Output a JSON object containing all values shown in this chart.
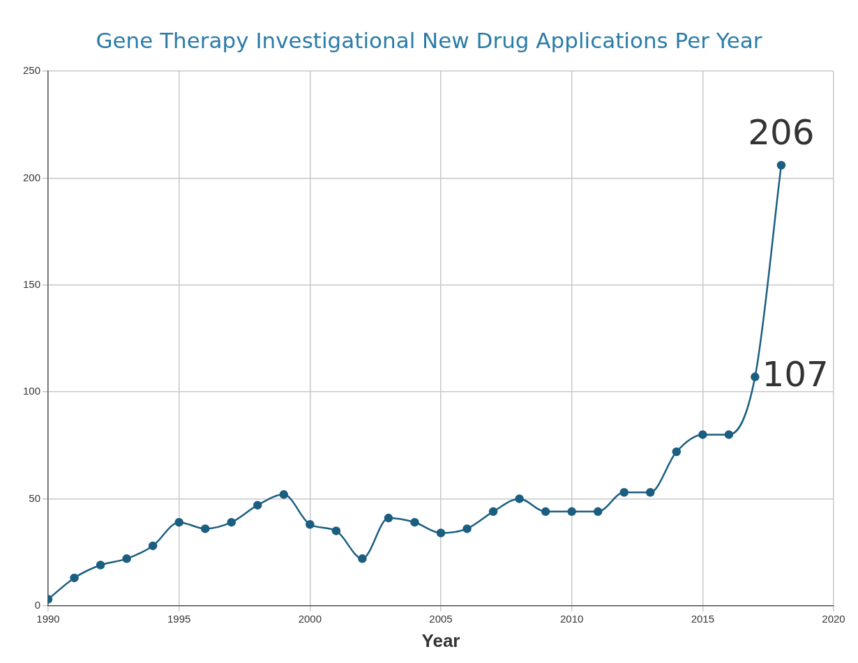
{
  "chart_data": {
    "type": "line",
    "title": "Gene Therapy Investigational New Drug Applications Per Year",
    "xlabel": "Year",
    "x": [
      1990,
      1991,
      1992,
      1993,
      1994,
      1995,
      1996,
      1997,
      1998,
      1999,
      2000,
      2001,
      2002,
      2003,
      2004,
      2005,
      2006,
      2007,
      2008,
      2009,
      2010,
      2011,
      2012,
      2013,
      2014,
      2015,
      2016,
      2017,
      2018
    ],
    "series": [
      {
        "color": "#1b5e80",
        "values": [
          3,
          13,
          19,
          22,
          28,
          39,
          36,
          39,
          47,
          52,
          38,
          35,
          22,
          41,
          39,
          34,
          36,
          44,
          50,
          44,
          44,
          44,
          53,
          53,
          72,
          80,
          80,
          107,
          206
        ],
        "value_labels": [
          null,
          null,
          null,
          null,
          null,
          null,
          null,
          null,
          null,
          null,
          null,
          null,
          null,
          null,
          null,
          null,
          null,
          null,
          null,
          null,
          null,
          null,
          null,
          null,
          null,
          null,
          null,
          "107",
          "206"
        ]
      }
    ],
    "xlim": [
      1990,
      2020
    ],
    "xticks": [
      1990,
      1995,
      2000,
      2005,
      2010,
      2015,
      2020
    ],
    "ylim": [
      0,
      250
    ],
    "yticks": [
      0,
      50,
      100,
      150,
      200,
      250
    ],
    "grid": true,
    "legend": false,
    "marker": "circle",
    "line_style": "solid"
  }
}
